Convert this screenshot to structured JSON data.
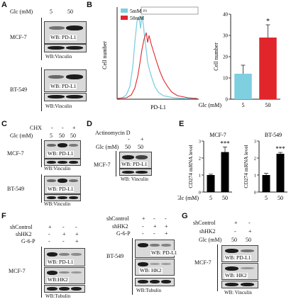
{
  "figure": {
    "panel_labels": [
      "A",
      "B",
      "C",
      "D",
      "E",
      "F",
      "G"
    ]
  },
  "panel_a": {
    "glc_label": "Glc (mM)",
    "glc_values": [
      "5",
      "50"
    ],
    "cell_lines": [
      "MCF-7",
      "BT-549"
    ],
    "wb_target": "WB: PD-L1",
    "wb_loading": "WB:Vinculin"
  },
  "panel_b": {
    "flow": {
      "y_label": "Cell number",
      "x_label": "PD-L1",
      "gate_label": "P1",
      "legend": [
        {
          "name": "5mM",
          "color": "#7ecfe0"
        },
        {
          "name": "50mM",
          "color": "#e0262b"
        }
      ]
    },
    "bar_axis_label": "Glc (mM)",
    "significance": "*"
  },
  "panel_c": {
    "chx_label": "CHX",
    "chx_values": [
      "-",
      "-",
      "+"
    ],
    "glc_label": "Glc (mM)",
    "glc_values": [
      "5",
      "50",
      "50"
    ],
    "cell_lines": [
      "MCF-7",
      "BT-549"
    ],
    "wb_target": "WB: PD-L1",
    "wb_loading": "WB:Vinculin"
  },
  "panel_d": {
    "act_label": "Actinomycin D",
    "act_values": [
      "-",
      "+"
    ],
    "glc_label": "Glc (mM)",
    "glc_values": [
      "50",
      "50"
    ],
    "cell_line": "MCF-7",
    "wb_target": "WB: PD-L1",
    "wb_loading": "WB: Vinculin"
  },
  "panel_e": {
    "significance": "***",
    "x_axis_label": "Glc (mM)"
  },
  "panel_f": {
    "row_labels": [
      "shControl",
      "shHK2",
      "G-6-P"
    ],
    "row_values": [
      [
        "+",
        "-",
        "-"
      ],
      [
        "-",
        "+",
        "+"
      ],
      [
        "-",
        "-",
        "+"
      ]
    ],
    "cell_lines": [
      "MCF-7",
      "BT-549"
    ],
    "wb_target": "WB: PD-L1",
    "wb_hk2": "WB:HK2",
    "wb_hk2_b": "WB: HK2",
    "wb_loading": "WB:Tubulin"
  },
  "panel_g": {
    "row_labels": [
      "shControl",
      "shHK2",
      "Glc (mM)"
    ],
    "row_values": [
      [
        "+",
        "-"
      ],
      [
        "-",
        "+"
      ],
      [
        "50",
        "50"
      ]
    ],
    "cell_line": "MCF-7",
    "wb_target": "WB: PD-L1",
    "wb_hk2": "WB: HK2",
    "wb_loading": "WB: Vinculin"
  },
  "chart_data": [
    {
      "type": "bar",
      "categories": [
        "5",
        "50"
      ],
      "values": [
        12,
        29
      ],
      "errors": [
        4,
        6
      ],
      "colors": [
        "#7ecfe0",
        "#e0262b"
      ],
      "title": "",
      "xlabel": "Glc (mM)",
      "ylabel": "Cell number",
      "ylim": [
        0,
        40
      ],
      "yticks": [
        0,
        10,
        20,
        30,
        40
      ]
    },
    {
      "type": "bar",
      "categories": [
        "5",
        "50"
      ],
      "values": [
        1.0,
        2.35
      ],
      "errors": [
        0.05,
        0.3
      ],
      "title": "MCF-7",
      "xlabel": "Glc (mM)",
      "ylabel": "CD274 mRNA level",
      "ylim": [
        0,
        3
      ],
      "yticks": [
        0,
        1,
        2,
        3
      ]
    },
    {
      "type": "bar",
      "categories": [
        "5",
        "50"
      ],
      "values": [
        1.0,
        2.25
      ],
      "errors": [
        0.1,
        0.08
      ],
      "title": "BT-549",
      "xlabel": "Glc (mM)",
      "ylabel": "CD274 mRNA level",
      "ylim": [
        0,
        3
      ],
      "yticks": [
        0,
        1,
        2,
        3
      ]
    }
  ]
}
